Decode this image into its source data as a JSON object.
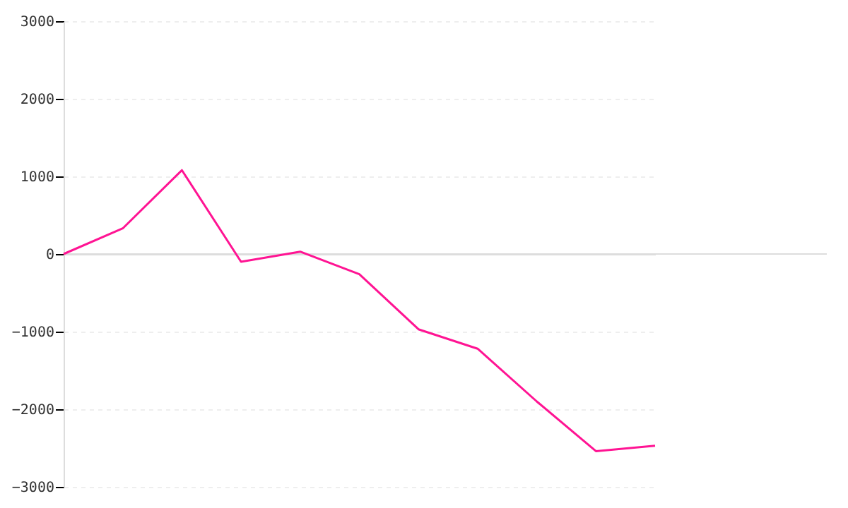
{
  "chart_data": {
    "type": "line",
    "categories": [
      null,
      null,
      null,
      null,
      null,
      null,
      null,
      null,
      null,
      null,
      null
    ],
    "series": [
      {
        "color": "#ff1493",
        "values": [
          0,
          330,
          1080,
          -100,
          30,
          -260,
          -970,
          -1220,
          -1900,
          -2540,
          -2470
        ]
      }
    ],
    "ylim": [
      -3000,
      3000
    ],
    "yticks": [
      -3000,
      -2000,
      -1000,
      0,
      1000,
      2000,
      3000
    ],
    "grid": "y",
    "tick_labels": "y",
    "line_style": "solid"
  }
}
